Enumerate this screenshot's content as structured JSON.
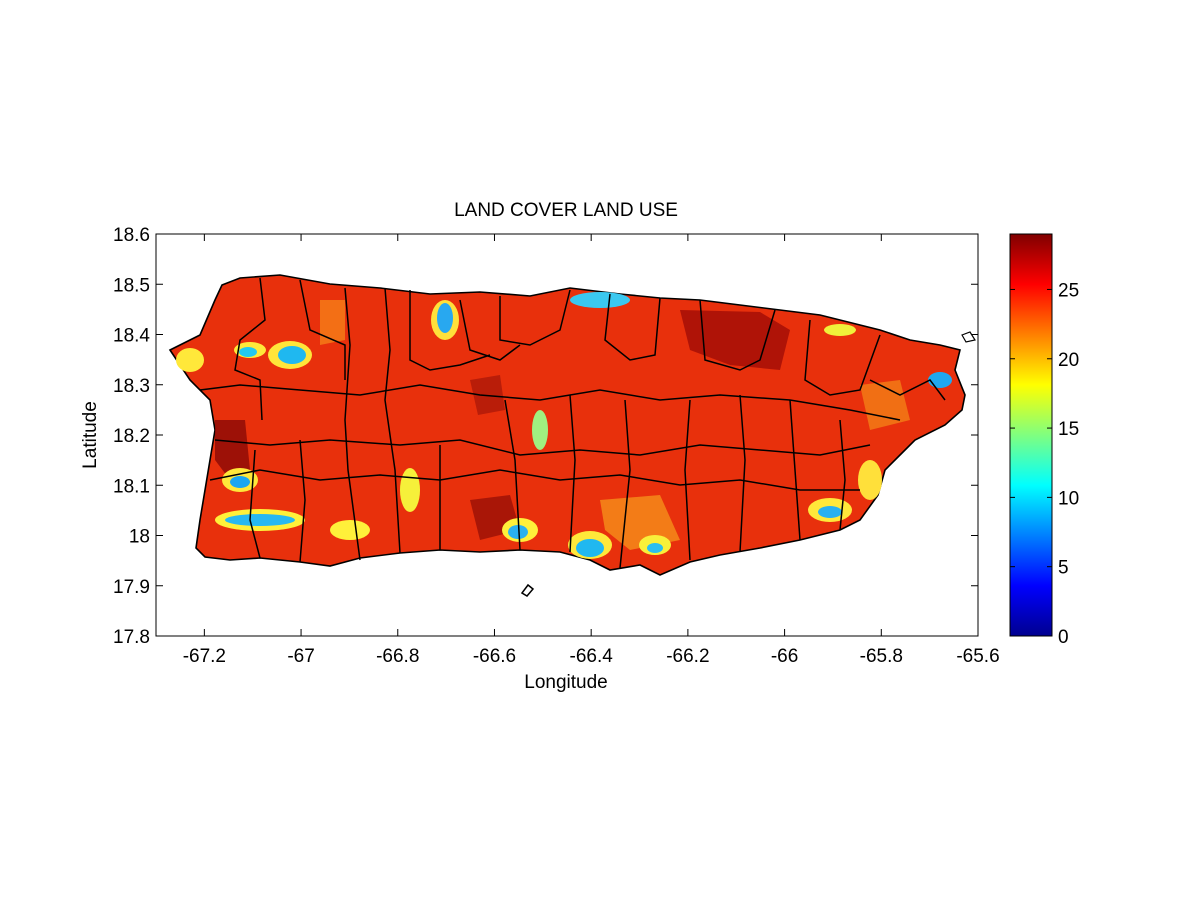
{
  "figure": {
    "title": "LAND COVER LAND USE",
    "xlabel": "Longitude",
    "ylabel": "Latitude"
  },
  "axes": {
    "xlim": [
      -67.3,
      -65.6
    ],
    "ylim": [
      17.8,
      18.6
    ],
    "xticks": [
      -67.2,
      -67,
      -66.8,
      -66.6,
      -66.4,
      -66.2,
      -66,
      -65.8,
      -65.6
    ],
    "xtick_labels": [
      "-67.2",
      "-67",
      "-66.8",
      "-66.6",
      "-66.4",
      "-66.2",
      "-66",
      "-65.8",
      "-65.6"
    ],
    "yticks": [
      17.8,
      17.9,
      18,
      18.1,
      18.2,
      18.3,
      18.4,
      18.5,
      18.6
    ],
    "ytick_labels": [
      "17.8",
      "17.9",
      "18",
      "18.1",
      "18.2",
      "18.3",
      "18.4",
      "18.5",
      "18.6"
    ]
  },
  "colorbar": {
    "colormap": "jet",
    "range": [
      0,
      29
    ],
    "ticks": [
      0,
      5,
      10,
      15,
      20,
      25
    ],
    "tick_labels": [
      "0",
      "5",
      "10",
      "15",
      "20",
      "25"
    ]
  },
  "map": {
    "region_fill_dominant": "#e8300c",
    "boundary_color": "#000000"
  }
}
